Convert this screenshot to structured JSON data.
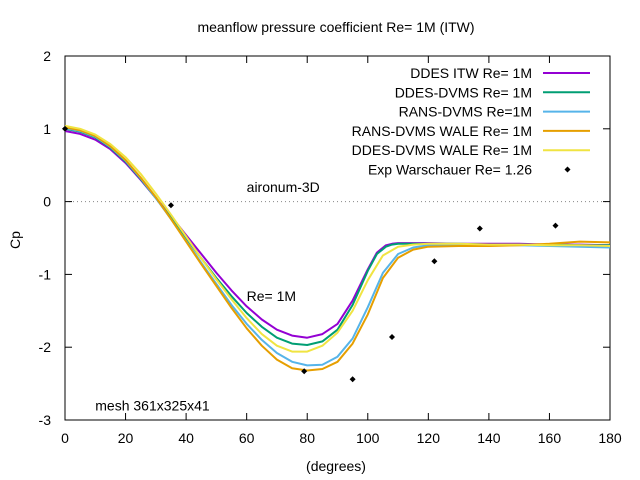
{
  "chart_data": {
    "type": "line",
    "title": "meanflow pressure coefficient  Re= 1M (ITW)",
    "xlabel": "(degrees)",
    "ylabel": "Cp",
    "xlim": [
      0,
      180
    ],
    "ylim": [
      -3,
      2
    ],
    "xticks": [
      0,
      20,
      40,
      60,
      80,
      100,
      120,
      140,
      160,
      180
    ],
    "yticks": [
      -3,
      -2,
      -1,
      0,
      1,
      2
    ],
    "grid": false,
    "zero_line": true,
    "legend_position": "top-right",
    "annotations": [
      {
        "text": "aironum-3D",
        "x": 60,
        "y": 0.2
      },
      {
        "text": "Re= 1M",
        "x": 60,
        "y": -1.3
      },
      {
        "text": "mesh 361x325x41",
        "x": 10,
        "y": -2.8
      }
    ],
    "series": [
      {
        "name": "DDES ITW Re= 1M",
        "color": "#9400d3",
        "style": "line",
        "x": [
          0,
          5,
          10,
          15,
          20,
          25,
          30,
          35,
          40,
          45,
          50,
          55,
          60,
          65,
          70,
          75,
          80,
          85,
          90,
          95,
          100,
          103,
          106,
          108,
          110,
          115,
          120,
          130,
          140,
          150,
          160,
          170,
          180
        ],
        "y": [
          0.97,
          0.93,
          0.85,
          0.72,
          0.53,
          0.3,
          0.05,
          -0.2,
          -0.46,
          -0.72,
          -0.98,
          -1.22,
          -1.44,
          -1.62,
          -1.76,
          -1.84,
          -1.87,
          -1.82,
          -1.68,
          -1.36,
          -0.93,
          -0.7,
          -0.6,
          -0.58,
          -0.57,
          -0.57,
          -0.57,
          -0.58,
          -0.58,
          -0.58,
          -0.59,
          -0.59,
          -0.6
        ]
      },
      {
        "name": "DDES-DVMS Re= 1M",
        "color": "#009e73",
        "style": "line",
        "x": [
          0,
          5,
          10,
          15,
          20,
          25,
          30,
          35,
          40,
          45,
          50,
          55,
          60,
          65,
          70,
          75,
          80,
          85,
          90,
          95,
          100,
          103,
          106,
          108,
          110,
          115,
          120,
          130,
          140,
          150,
          160,
          170,
          180
        ],
        "y": [
          1.0,
          0.96,
          0.88,
          0.74,
          0.55,
          0.31,
          0.05,
          -0.22,
          -0.5,
          -0.78,
          -1.05,
          -1.3,
          -1.53,
          -1.72,
          -1.87,
          -1.95,
          -1.97,
          -1.92,
          -1.76,
          -1.42,
          -0.95,
          -0.72,
          -0.62,
          -0.59,
          -0.58,
          -0.58,
          -0.58,
          -0.58,
          -0.59,
          -0.59,
          -0.59,
          -0.6,
          -0.6
        ]
      },
      {
        "name": "RANS-DVMS Re=1M",
        "color": "#56b4e9",
        "style": "line",
        "x": [
          0,
          5,
          10,
          15,
          20,
          25,
          30,
          35,
          40,
          45,
          50,
          55,
          60,
          65,
          70,
          75,
          80,
          85,
          90,
          95,
          100,
          105,
          110,
          115,
          120,
          130,
          140,
          150,
          160,
          170,
          180
        ],
        "y": [
          1.01,
          0.97,
          0.89,
          0.75,
          0.56,
          0.32,
          0.05,
          -0.24,
          -0.54,
          -0.84,
          -1.13,
          -1.42,
          -1.68,
          -1.9,
          -2.08,
          -2.2,
          -2.25,
          -2.24,
          -2.13,
          -1.88,
          -1.45,
          -0.98,
          -0.72,
          -0.63,
          -0.6,
          -0.59,
          -0.6,
          -0.6,
          -0.61,
          -0.62,
          -0.63
        ]
      },
      {
        "name": "RANS-DVMS WALE Re= 1M",
        "color": "#e69f00",
        "style": "line",
        "x": [
          0,
          5,
          10,
          15,
          20,
          25,
          30,
          35,
          40,
          45,
          50,
          55,
          60,
          65,
          70,
          75,
          80,
          85,
          90,
          95,
          100,
          105,
          110,
          115,
          120,
          130,
          140,
          150,
          160,
          170,
          180
        ],
        "y": [
          1.02,
          0.98,
          0.9,
          0.76,
          0.57,
          0.33,
          0.06,
          -0.24,
          -0.55,
          -0.86,
          -1.16,
          -1.46,
          -1.74,
          -1.98,
          -2.17,
          -2.29,
          -2.32,
          -2.3,
          -2.2,
          -1.95,
          -1.55,
          -1.05,
          -0.77,
          -0.66,
          -0.62,
          -0.61,
          -0.61,
          -0.6,
          -0.58,
          -0.55,
          -0.56
        ]
      },
      {
        "name": "DDES-DVMS WALE Re= 1M",
        "color": "#f0e442",
        "style": "line",
        "x": [
          0,
          5,
          10,
          15,
          20,
          25,
          30,
          35,
          40,
          45,
          50,
          55,
          60,
          65,
          70,
          75,
          80,
          85,
          90,
          95,
          100,
          105,
          110,
          115,
          120,
          130,
          140,
          150,
          160,
          170,
          180
        ],
        "y": [
          1.04,
          1.0,
          0.92,
          0.79,
          0.61,
          0.38,
          0.11,
          -0.18,
          -0.48,
          -0.78,
          -1.07,
          -1.34,
          -1.6,
          -1.82,
          -1.98,
          -2.06,
          -2.06,
          -1.98,
          -1.8,
          -1.5,
          -1.08,
          -0.74,
          -0.62,
          -0.59,
          -0.58,
          -0.58,
          -0.59,
          -0.59,
          -0.6,
          -0.6,
          -0.61
        ]
      },
      {
        "name": "Exp Warschauer Re= 1.26",
        "color": "#000000",
        "style": "points",
        "x": [
          0,
          35,
          79,
          95,
          108,
          122,
          137,
          162
        ],
        "y": [
          1.0,
          -0.05,
          -2.33,
          -2.44,
          -1.86,
          -0.82,
          -0.37,
          -0.33
        ]
      }
    ]
  }
}
